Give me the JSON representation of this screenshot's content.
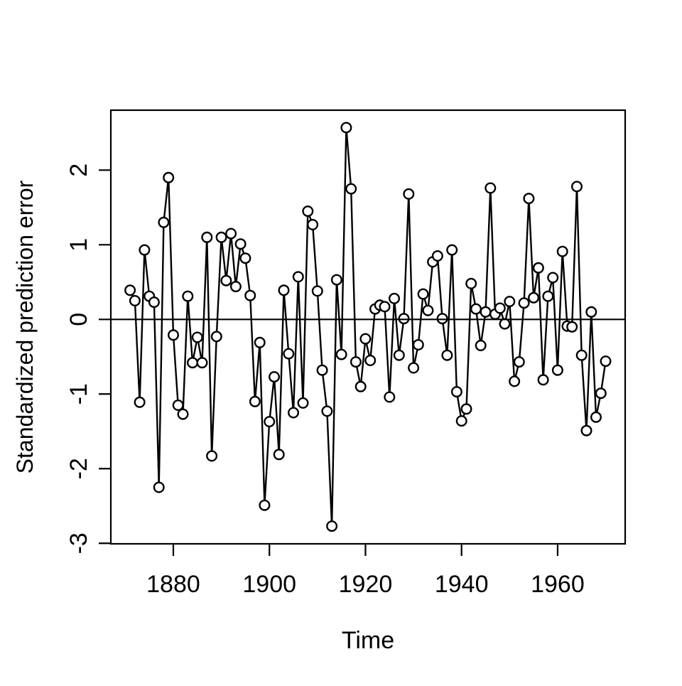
{
  "chart_data": {
    "type": "line",
    "title": "",
    "xlabel": "Time",
    "ylabel": "Standardized prediction error",
    "x_ticks": [
      1880,
      1900,
      1920,
      1940,
      1960
    ],
    "y_ticks": [
      -3,
      -2,
      -1,
      0,
      1,
      2
    ],
    "xlim": [
      1866.99,
      1974.06
    ],
    "ylim": [
      -3.007,
      2.803
    ],
    "zero_line": 0,
    "grid": "off",
    "legend": "none",
    "marker": "open-circle",
    "line_color": "#000000",
    "background": "#ffffff",
    "x_start": 1871,
    "x_step": 1,
    "values": [
      0.39,
      0.25,
      -1.11,
      0.93,
      0.31,
      0.23,
      -2.25,
      1.3,
      1.9,
      -0.21,
      -1.15,
      -1.27,
      0.31,
      -0.58,
      -0.24,
      -0.58,
      1.1,
      -1.83,
      -0.23,
      1.1,
      0.52,
      1.15,
      0.44,
      1.01,
      0.82,
      0.32,
      -1.1,
      -0.31,
      -2.49,
      -1.37,
      -0.77,
      -1.81,
      0.39,
      -0.46,
      -1.25,
      0.57,
      -1.12,
      1.45,
      1.27,
      0.38,
      -0.68,
      -1.23,
      -2.77,
      0.53,
      -0.47,
      2.57,
      1.75,
      -0.57,
      -0.9,
      -0.26,
      -0.55,
      0.14,
      0.19,
      0.17,
      -1.04,
      0.28,
      -0.48,
      0.01,
      1.68,
      -0.65,
      -0.34,
      0.34,
      0.12,
      0.77,
      0.85,
      0.01,
      -0.48,
      0.93,
      -0.97,
      -1.36,
      -1.2,
      0.48,
      0.14,
      -0.35,
      0.1,
      1.76,
      0.07,
      0.15,
      -0.06,
      0.24,
      -0.83,
      -0.57,
      0.22,
      1.62,
      0.29,
      0.69,
      -0.81,
      0.31,
      0.56,
      -0.68,
      0.91,
      -0.09,
      -0.1,
      1.78,
      -0.48,
      -1.49,
      0.1,
      -1.31,
      -0.99,
      -0.56
    ]
  }
}
